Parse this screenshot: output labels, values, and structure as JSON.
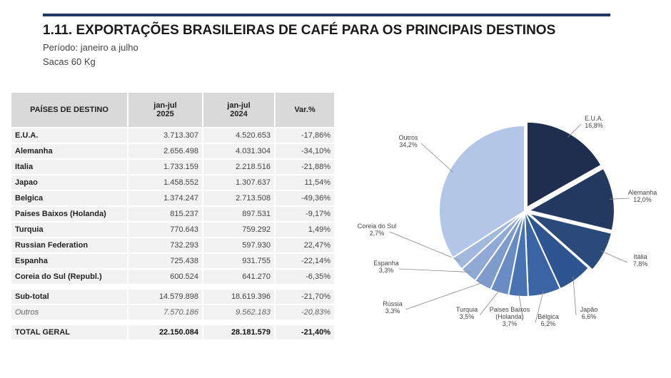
{
  "header": {
    "title": "1.11. EXPORTAÇÕES BRASILEIRAS DE CAFÉ PARA OS PRINCIPAIS DESTINOS",
    "period": "Período: janeiro a julho",
    "unit": "Sacas 60 Kg"
  },
  "table": {
    "headers": {
      "country": "PAÍSES DE DESTINO",
      "col2025_a": "jan-jul",
      "col2025_b": "2025",
      "col2024_a": "jan-jul",
      "col2024_b": "2024",
      "var": "Var.%"
    },
    "rows": [
      {
        "country": "E.U.A.",
        "v2025": "3.713.307",
        "v2024": "4.520.653",
        "var": "-17,86%"
      },
      {
        "country": "Alemanha",
        "v2025": "2.656.498",
        "v2024": "4.031.304",
        "var": "-34,10%"
      },
      {
        "country": "Italia",
        "v2025": "1.733.159",
        "v2024": "2.218.516",
        "var": "-21,88%"
      },
      {
        "country": "Japao",
        "v2025": "1.458.552",
        "v2024": "1.307.637",
        "var": "11,54%"
      },
      {
        "country": "Belgica",
        "v2025": "1.374.247",
        "v2024": "2.713.508",
        "var": "-49,36%"
      },
      {
        "country": "Paises Baixos (Holanda)",
        "v2025": "815.237",
        "v2024": "897.531",
        "var": "-9,17%"
      },
      {
        "country": "Turquia",
        "v2025": "770.643",
        "v2024": "759.292",
        "var": "1,49%"
      },
      {
        "country": "Russian Federation",
        "v2025": "732.293",
        "v2024": "597.930",
        "var": "22,47%"
      },
      {
        "country": "Espanha",
        "v2025": "725.438",
        "v2024": "931.755",
        "var": "-22,14%"
      },
      {
        "country": "Coreia do Sul (Republ.)",
        "v2025": "600.524",
        "v2024": "641.270",
        "var": "-6,35%"
      }
    ],
    "subtotal": {
      "country": "Sub-total",
      "v2025": "14.579.898",
      "v2024": "18.619.396",
      "var": "-21,70%"
    },
    "outros": {
      "country": "Outros",
      "v2025": "7.570.186",
      "v2024": "9.562.183",
      "var": "-20,83%"
    },
    "total": {
      "country": "TOTAL GERAL",
      "v2025": "22.150.084",
      "v2024": "28.181.579",
      "var": "-21,40%"
    }
  },
  "chart_data": {
    "type": "pie",
    "slices": [
      {
        "name": "E.U.A.",
        "value": 16.8,
        "label": "16,8%",
        "color": "#1f2d4f"
      },
      {
        "name": "Alemanha",
        "value": 12.0,
        "label": "12,0%",
        "color": "#24395f"
      },
      {
        "name": "Itália",
        "value": 7.8,
        "label": "7,8%",
        "color": "#2a4a7a"
      },
      {
        "name": "Japão",
        "value": 6.6,
        "label": "6,6%",
        "color": "#2f5590"
      },
      {
        "name": "Bélgica",
        "value": 6.2,
        "label": "6,2%",
        "color": "#3a64a4"
      },
      {
        "name": "Paises Baixos (Holanda)",
        "value": 3.7,
        "label": "3,7%",
        "color": "#4873b2"
      },
      {
        "name": "Turquia",
        "value": 3.5,
        "label": "3,5%",
        "color": "#6a8cc4"
      },
      {
        "name": "Rússia",
        "value": 3.3,
        "label": "3,3%",
        "color": "#7f9bcc"
      },
      {
        "name": "Espanha",
        "value": 3.3,
        "label": "3,3%",
        "color": "#91aad5"
      },
      {
        "name": "Coreia do Sul",
        "value": 2.7,
        "label": "2,7%",
        "color": "#a3b8dd"
      },
      {
        "name": "Outros",
        "value": 34.2,
        "label": "34,2%",
        "color": "#b4c6e7"
      }
    ]
  }
}
